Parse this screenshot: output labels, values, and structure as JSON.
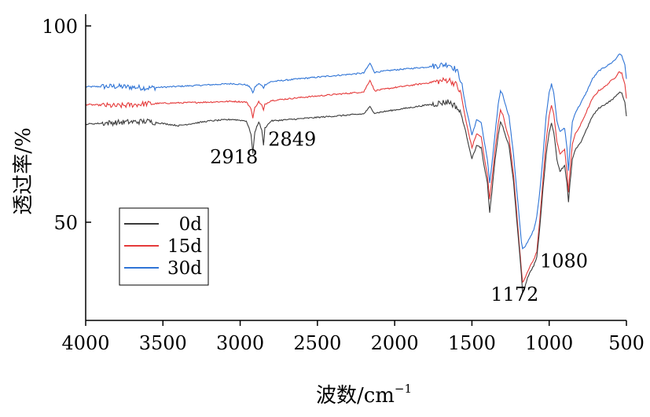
{
  "chart_data": {
    "type": "line",
    "title": "",
    "xlabel": "波数/cm",
    "xlabel_sup": "−1",
    "ylabel": "透过率/%",
    "xlim": [
      4000,
      500
    ],
    "ylim": [
      25,
      103
    ],
    "x_ticks": [
      4000,
      3500,
      3000,
      2500,
      2000,
      1500,
      1000,
      500
    ],
    "x_tick_labels": [
      "4000",
      "3500",
      "3000",
      "2500",
      "2000",
      "1500",
      "1000",
      "500"
    ],
    "y_ticks": [
      50,
      100
    ],
    "y_tick_labels": [
      "50",
      "100"
    ],
    "grid": false,
    "legend_position": "bottom-left",
    "series": [
      {
        "name": "0d",
        "color": "#3a3a3a",
        "points": [
          [
            4000,
            75
          ],
          [
            3800,
            75.4
          ],
          [
            3600,
            75.7
          ],
          [
            3400,
            74.6
          ],
          [
            3200,
            75.8
          ],
          [
            3050,
            76.2
          ],
          [
            2960,
            75.8
          ],
          [
            2930,
            72.5
          ],
          [
            2918,
            67.5
          ],
          [
            2905,
            73
          ],
          [
            2880,
            75.6
          ],
          [
            2860,
            73.5
          ],
          [
            2849,
            69.5
          ],
          [
            2840,
            74
          ],
          [
            2800,
            75.8
          ],
          [
            2600,
            76.4
          ],
          [
            2400,
            77
          ],
          [
            2200,
            77.6
          ],
          [
            2160,
            79.4
          ],
          [
            2130,
            77.8
          ],
          [
            2000,
            78.6
          ],
          [
            1800,
            79.8
          ],
          [
            1650,
            80.7
          ],
          [
            1600,
            79.4
          ],
          [
            1570,
            77.5
          ],
          [
            1540,
            73
          ],
          [
            1520,
            69.5
          ],
          [
            1500,
            66.2
          ],
          [
            1470,
            69.5
          ],
          [
            1440,
            69
          ],
          [
            1420,
            64
          ],
          [
            1400,
            60
          ],
          [
            1385,
            52.5
          ],
          [
            1370,
            58
          ],
          [
            1350,
            66
          ],
          [
            1330,
            72
          ],
          [
            1315,
            75.5
          ],
          [
            1300,
            74.5
          ],
          [
            1280,
            71.5
          ],
          [
            1260,
            69.5
          ],
          [
            1230,
            60
          ],
          [
            1200,
            46
          ],
          [
            1180,
            37
          ],
          [
            1172,
            32
          ],
          [
            1160,
            33
          ],
          [
            1140,
            36
          ],
          [
            1120,
            37.5
          ],
          [
            1100,
            39
          ],
          [
            1090,
            40
          ],
          [
            1080,
            41
          ],
          [
            1060,
            49
          ],
          [
            1040,
            58.5
          ],
          [
            1020,
            67
          ],
          [
            1000,
            73
          ],
          [
            985,
            75.2
          ],
          [
            970,
            73
          ],
          [
            950,
            66
          ],
          [
            930,
            63
          ],
          [
            900,
            64.5
          ],
          [
            885,
            60
          ],
          [
            875,
            55
          ],
          [
            865,
            60
          ],
          [
            850,
            66
          ],
          [
            830,
            68.5
          ],
          [
            800,
            70
          ],
          [
            760,
            73.5
          ],
          [
            720,
            77
          ],
          [
            680,
            79
          ],
          [
            640,
            80
          ],
          [
            600,
            81
          ],
          [
            570,
            82
          ],
          [
            550,
            83
          ],
          [
            530,
            83
          ],
          [
            510,
            80.5
          ],
          [
            500,
            77
          ]
        ]
      },
      {
        "name": "15d",
        "color": "#e53a3a",
        "points": [
          [
            4000,
            80
          ],
          [
            3800,
            79.6
          ],
          [
            3600,
            80.2
          ],
          [
            3400,
            80.4
          ],
          [
            3200,
            80.6
          ],
          [
            3050,
            80.8
          ],
          [
            2960,
            80.6
          ],
          [
            2930,
            79
          ],
          [
            2918,
            76.5
          ],
          [
            2905,
            79.2
          ],
          [
            2880,
            80.7
          ],
          [
            2860,
            79.8
          ],
          [
            2849,
            78.5
          ],
          [
            2840,
            80
          ],
          [
            2800,
            81
          ],
          [
            2600,
            81.8
          ],
          [
            2400,
            82.5
          ],
          [
            2200,
            83.2
          ],
          [
            2160,
            86.2
          ],
          [
            2130,
            83.5
          ],
          [
            2000,
            84.3
          ],
          [
            1800,
            85.4
          ],
          [
            1650,
            86.3
          ],
          [
            1600,
            85
          ],
          [
            1570,
            82.5
          ],
          [
            1540,
            76
          ],
          [
            1520,
            72.5
          ],
          [
            1500,
            69
          ],
          [
            1470,
            72.5
          ],
          [
            1440,
            71.8
          ],
          [
            1420,
            66.5
          ],
          [
            1400,
            62
          ],
          [
            1385,
            56
          ],
          [
            1370,
            61
          ],
          [
            1350,
            68.5
          ],
          [
            1330,
            75
          ],
          [
            1315,
            78.5
          ],
          [
            1300,
            77.5
          ],
          [
            1280,
            74
          ],
          [
            1260,
            71.5
          ],
          [
            1230,
            62
          ],
          [
            1200,
            47.5
          ],
          [
            1180,
            38
          ],
          [
            1172,
            34.8
          ],
          [
            1160,
            35.5
          ],
          [
            1140,
            37.5
          ],
          [
            1120,
            39
          ],
          [
            1100,
            40.5
          ],
          [
            1090,
            41.5
          ],
          [
            1080,
            42.5
          ],
          [
            1060,
            51
          ],
          [
            1040,
            61
          ],
          [
            1020,
            70.5
          ],
          [
            1000,
            77
          ],
          [
            985,
            79.8
          ],
          [
            970,
            77.5
          ],
          [
            950,
            70.5
          ],
          [
            930,
            67.5
          ],
          [
            900,
            68.5
          ],
          [
            885,
            63
          ],
          [
            875,
            57.5
          ],
          [
            865,
            63
          ],
          [
            850,
            70
          ],
          [
            830,
            72.5
          ],
          [
            800,
            74.5
          ],
          [
            760,
            78
          ],
          [
            720,
            81.5
          ],
          [
            680,
            83.5
          ],
          [
            640,
            84.5
          ],
          [
            600,
            86
          ],
          [
            570,
            87
          ],
          [
            550,
            88.3
          ],
          [
            530,
            88
          ],
          [
            510,
            85
          ],
          [
            500,
            81.5
          ]
        ]
      },
      {
        "name": "30d",
        "color": "#2f74d6",
        "points": [
          [
            4000,
            84.5
          ],
          [
            3800,
            84.6
          ],
          [
            3600,
            84.2
          ],
          [
            3400,
            84.6
          ],
          [
            3200,
            85
          ],
          [
            3050,
            85.3
          ],
          [
            2960,
            85
          ],
          [
            2930,
            84.2
          ],
          [
            2918,
            82.8
          ],
          [
            2905,
            84.4
          ],
          [
            2880,
            85.3
          ],
          [
            2860,
            84.8
          ],
          [
            2849,
            84.2
          ],
          [
            2840,
            85
          ],
          [
            2800,
            85.8
          ],
          [
            2600,
            86.6
          ],
          [
            2400,
            87.3
          ],
          [
            2200,
            88
          ],
          [
            2160,
            90.5
          ],
          [
            2130,
            88.2
          ],
          [
            2000,
            88.8
          ],
          [
            1800,
            89.5
          ],
          [
            1650,
            90.3
          ],
          [
            1600,
            88.8
          ],
          [
            1570,
            86
          ],
          [
            1540,
            79.5
          ],
          [
            1520,
            76
          ],
          [
            1500,
            72.2
          ],
          [
            1470,
            76
          ],
          [
            1440,
            75.5
          ],
          [
            1420,
            70.5
          ],
          [
            1400,
            66
          ],
          [
            1385,
            60
          ],
          [
            1370,
            65
          ],
          [
            1350,
            72.5
          ],
          [
            1330,
            80
          ],
          [
            1315,
            83.5
          ],
          [
            1300,
            82.5
          ],
          [
            1280,
            79.5
          ],
          [
            1260,
            77
          ],
          [
            1230,
            67
          ],
          [
            1200,
            54
          ],
          [
            1180,
            45
          ],
          [
            1172,
            43.2
          ],
          [
            1160,
            43.5
          ],
          [
            1140,
            45
          ],
          [
            1120,
            46.5
          ],
          [
            1100,
            48
          ],
          [
            1090,
            49.5
          ],
          [
            1080,
            51.5
          ],
          [
            1060,
            58
          ],
          [
            1040,
            67
          ],
          [
            1020,
            77
          ],
          [
            1000,
            83
          ],
          [
            985,
            85.2
          ],
          [
            970,
            83
          ],
          [
            950,
            76
          ],
          [
            930,
            73
          ],
          [
            900,
            74
          ],
          [
            885,
            69
          ],
          [
            875,
            63
          ],
          [
            865,
            69
          ],
          [
            850,
            75.5
          ],
          [
            830,
            78
          ],
          [
            800,
            80
          ],
          [
            760,
            83
          ],
          [
            720,
            86.5
          ],
          [
            680,
            88.5
          ],
          [
            640,
            89.5
          ],
          [
            600,
            90.5
          ],
          [
            570,
            91.5
          ],
          [
            550,
            92.8
          ],
          [
            530,
            92.5
          ],
          [
            510,
            90
          ],
          [
            500,
            86.5
          ]
        ]
      }
    ],
    "annotations": [
      {
        "text": "2918",
        "x": 2918,
        "y": 65
      },
      {
        "text": "2849",
        "x": 2849,
        "y": 69.5
      },
      {
        "text": "1172",
        "x": 1172,
        "y": 30
      },
      {
        "text": "1080",
        "x": 1080,
        "y": 38.5
      }
    ]
  }
}
